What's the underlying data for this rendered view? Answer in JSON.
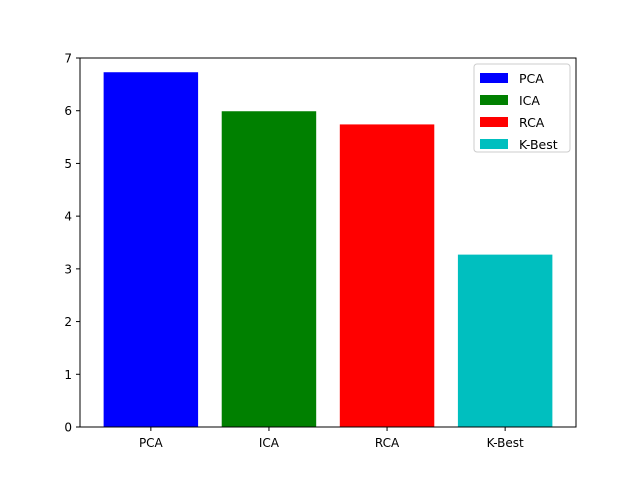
{
  "chart_data": {
    "type": "bar",
    "categories": [
      "PCA",
      "ICA",
      "RCA",
      "K-Best"
    ],
    "values": [
      6.73,
      5.99,
      5.74,
      3.27
    ],
    "colors": [
      "#0000ff",
      "#008000",
      "#ff0000",
      "#00bfbf"
    ],
    "ylim": [
      0,
      7
    ],
    "yticks": [
      "0",
      "1",
      "2",
      "3",
      "4",
      "5",
      "6",
      "7"
    ],
    "legend": {
      "placement": "top-right",
      "entries": [
        "PCA",
        "ICA",
        "RCA",
        "K-Best"
      ]
    },
    "grid": false
  }
}
